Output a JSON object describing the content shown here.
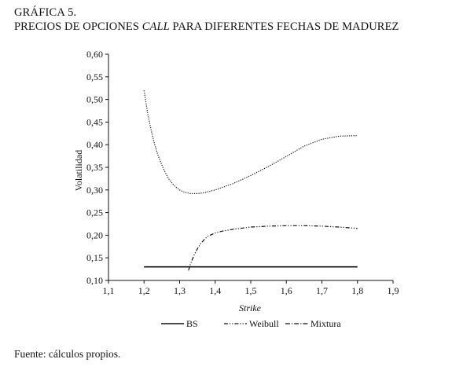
{
  "figure": {
    "label": "GRÁFICA 5.",
    "title_before": "PRECIOS DE OPCIONES ",
    "title_italic": "CALL",
    "title_after": " PARA DIFERENTES FECHAS DE MADUREZ",
    "source": "Fuente: cálculos propios."
  },
  "chart_data": {
    "type": "line",
    "title": "PRECIOS DE OPCIONES CALL PARA DIFERENTES FECHAS DE MADUREZ",
    "xlabel": "Strike",
    "ylabel": "Volatilidad",
    "xlim": [
      1.1,
      1.9
    ],
    "ylim": [
      0.1,
      0.6
    ],
    "xticks": [
      "1,1",
      "1,2",
      "1,3",
      "1,4",
      "1,5",
      "1,6",
      "1,7",
      "1,8",
      "1,9"
    ],
    "yticks": [
      "0,10",
      "0,15",
      "0,20",
      "0,25",
      "0,30",
      "0,35",
      "0,40",
      "0,45",
      "0,50",
      "0,55",
      "0,60"
    ],
    "grid": false,
    "legend_position": "bottom",
    "series": [
      {
        "name": "BS",
        "style": "solid",
        "color": "#111111",
        "x": [
          1.2,
          1.8
        ],
        "y": [
          0.13,
          0.13
        ]
      },
      {
        "name": "Weibull",
        "style": "dash-dot-dot",
        "color": "#111111",
        "x": [
          1.325,
          1.33,
          1.34,
          1.35,
          1.36,
          1.37,
          1.38,
          1.4,
          1.42,
          1.45,
          1.48,
          1.5,
          1.55,
          1.6,
          1.65,
          1.7,
          1.75,
          1.8
        ],
        "y": [
          0.122,
          0.135,
          0.155,
          0.17,
          0.182,
          0.191,
          0.198,
          0.205,
          0.209,
          0.213,
          0.216,
          0.218,
          0.22,
          0.221,
          0.221,
          0.22,
          0.218,
          0.215
        ]
      },
      {
        "name": "Mixtura",
        "style": "dotted",
        "color": "#111111",
        "x": [
          1.2,
          1.21,
          1.22,
          1.23,
          1.24,
          1.25,
          1.26,
          1.27,
          1.28,
          1.29,
          1.3,
          1.31,
          1.32,
          1.33,
          1.35,
          1.37,
          1.4,
          1.45,
          1.5,
          1.55,
          1.6,
          1.65,
          1.7,
          1.75,
          1.8
        ],
        "y": [
          0.52,
          0.47,
          0.432,
          0.4,
          0.375,
          0.355,
          0.338,
          0.324,
          0.314,
          0.306,
          0.3,
          0.296,
          0.294,
          0.292,
          0.292,
          0.294,
          0.3,
          0.314,
          0.332,
          0.352,
          0.374,
          0.397,
          0.412,
          0.419,
          0.42
        ]
      }
    ],
    "legend": [
      "BS",
      "Weibull",
      "Mixtura"
    ]
  }
}
